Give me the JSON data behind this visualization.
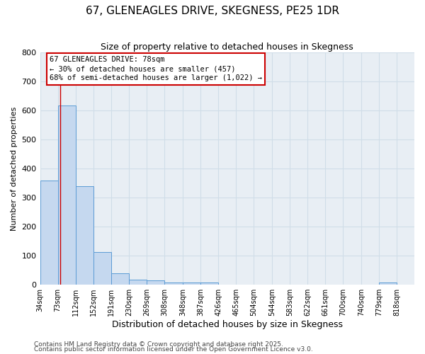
{
  "title": "67, GLENEAGLES DRIVE, SKEGNESS, PE25 1DR",
  "subtitle": "Size of property relative to detached houses in Skegness",
  "xlabel": "Distribution of detached houses by size in Skegness",
  "ylabel": "Number of detached properties",
  "bin_labels": [
    "34sqm",
    "73sqm",
    "112sqm",
    "152sqm",
    "191sqm",
    "230sqm",
    "269sqm",
    "308sqm",
    "348sqm",
    "387sqm",
    "426sqm",
    "465sqm",
    "504sqm",
    "544sqm",
    "583sqm",
    "622sqm",
    "661sqm",
    "700sqm",
    "740sqm",
    "779sqm",
    "818sqm"
  ],
  "bin_edges": [
    34,
    73,
    112,
    152,
    191,
    230,
    269,
    308,
    348,
    387,
    426,
    465,
    504,
    544,
    583,
    622,
    661,
    700,
    740,
    779,
    818,
    857
  ],
  "bar_heights": [
    360,
    617,
    340,
    112,
    40,
    18,
    15,
    8,
    8,
    8,
    0,
    0,
    0,
    0,
    0,
    0,
    0,
    0,
    0,
    8,
    0
  ],
  "bar_color": "#c5d8ef",
  "bar_edge_color": "#5b9bd5",
  "property_line_x": 78,
  "property_line_color": "#cc0000",
  "annotation_title": "67 GLENEAGLES DRIVE: 78sqm",
  "annotation_line1": "← 30% of detached houses are smaller (457)",
  "annotation_line2": "68% of semi-detached houses are larger (1,022) →",
  "annotation_box_edgecolor": "#cc0000",
  "ylim": [
    0,
    800
  ],
  "yticks": [
    0,
    100,
    200,
    300,
    400,
    500,
    600,
    700,
    800
  ],
  "grid_color": "#d0dde8",
  "background_color": "#e8eef4",
  "footer1": "Contains HM Land Registry data © Crown copyright and database right 2025.",
  "footer2": "Contains public sector information licensed under the Open Government Licence v3.0."
}
